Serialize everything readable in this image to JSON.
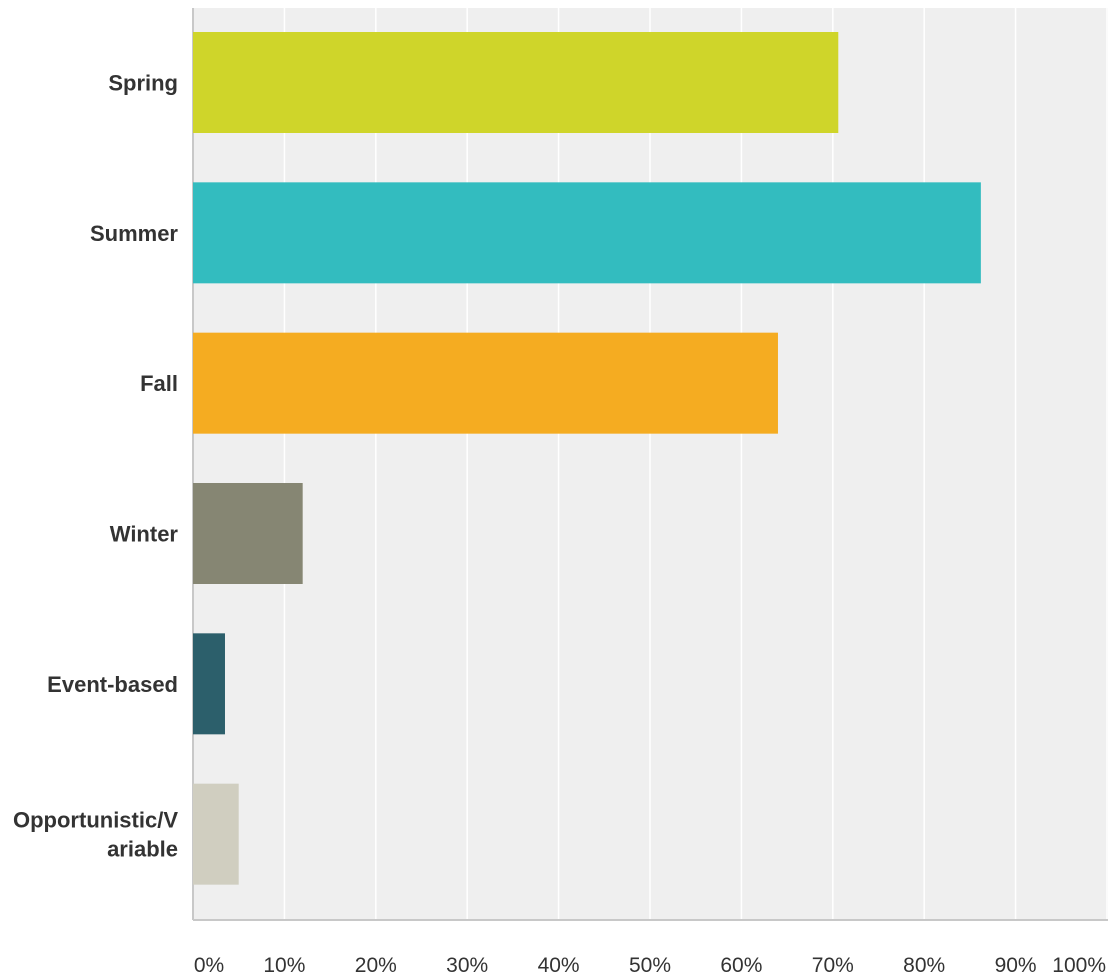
{
  "chart_data": {
    "type": "bar",
    "orientation": "horizontal",
    "categories": [
      [
        "Spring"
      ],
      [
        "Summer"
      ],
      [
        "Fall"
      ],
      [
        "Winter"
      ],
      [
        "Event-based"
      ],
      [
        "Opportunistic/V",
        "ariable"
      ]
    ],
    "values": [
      70.6,
      86.2,
      64.0,
      12.0,
      3.5,
      5.0
    ],
    "colors": [
      "#cfd52a",
      "#33bcbf",
      "#f5ac21",
      "#868673",
      "#2c5f6b",
      "#d0ceC0"
    ],
    "xlim": [
      0,
      100
    ],
    "xticks": [
      0,
      10,
      20,
      30,
      40,
      50,
      60,
      70,
      80,
      90,
      100
    ],
    "xtick_labels": [
      "0%",
      "10%",
      "20%",
      "30%",
      "40%",
      "50%",
      "60%",
      "70%",
      "80%",
      "90%",
      "100%"
    ],
    "grid": true,
    "title": "",
    "xlabel": "",
    "ylabel": ""
  }
}
